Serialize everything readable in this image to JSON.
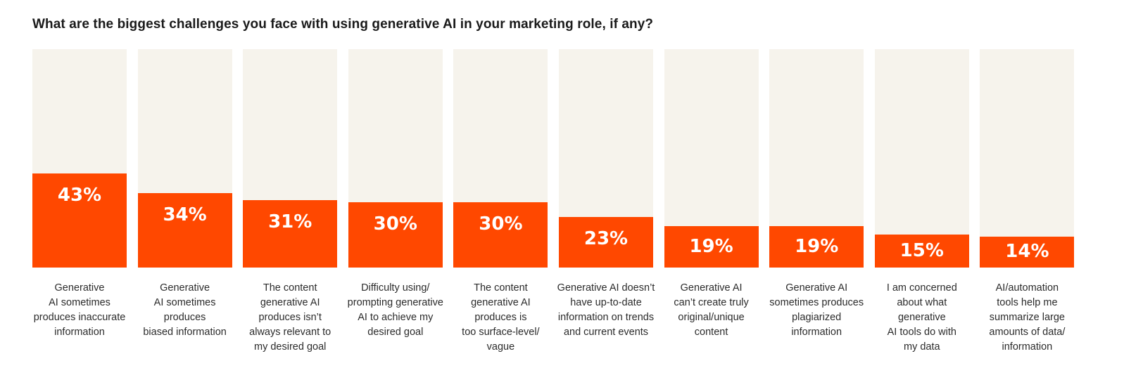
{
  "title": "What are the biggest challenges you face with using generative AI in your marketing role, if any?",
  "colors": {
    "fill": "#FF4800",
    "track": "#F6F3EC",
    "value_text": "#FFFFFF"
  },
  "chart_data": {
    "type": "bar",
    "title": "What are the biggest challenges you face with using generative AI in your marketing role, if any?",
    "xlabel": "",
    "ylabel": "",
    "ylim": [
      0,
      100
    ],
    "grid": false,
    "categories": [
      "Generative AI sometimes produces inaccurate information",
      "Generative AI sometimes produces biased information",
      "The content generative AI produces isn't always relevant to my desired goal",
      "Difficulty using/prompting generative AI to achieve my desired goal",
      "The content generative AI produces is too surface-level/vague",
      "Generative AI doesn't have up-to-date information on trends and current events",
      "Generative AI can't create truly original/unique content",
      "Generative AI sometimes produces plagiarized information",
      "I am concerned about what generative AI tools do with my data",
      "AI/automation tools help me summarize large amounts of data/information"
    ],
    "values": [
      43,
      34,
      31,
      30,
      30,
      23,
      19,
      19,
      15,
      14
    ],
    "value_labels": [
      "43%",
      "34%",
      "31%",
      "30%",
      "30%",
      "23%",
      "19%",
      "19%",
      "15%",
      "14%"
    ]
  },
  "bars": [
    {
      "value": 43,
      "label_text": "43%",
      "category": [
        "Generative",
        "AI sometimes",
        "produces inaccurate",
        "information"
      ]
    },
    {
      "value": 34,
      "label_text": "34%",
      "category": [
        "Generative",
        "AI sometimes",
        "produces",
        "biased information"
      ]
    },
    {
      "value": 31,
      "label_text": "31%",
      "category": [
        "The content",
        "generative AI",
        "produces isn’t",
        "always relevant to",
        "my desired goal"
      ]
    },
    {
      "value": 30,
      "label_text": "30%",
      "category": [
        "Difficulty using/",
        "prompting generative",
        "AI to achieve my",
        "desired goal"
      ]
    },
    {
      "value": 30,
      "label_text": "30%",
      "category": [
        "The content",
        "generative AI",
        "produces is",
        "too surface-level/",
        "vague"
      ]
    },
    {
      "value": 23,
      "label_text": "23%",
      "category": [
        "Generative AI doesn’t",
        "have up-to-date",
        "information on trends",
        "and current events"
      ]
    },
    {
      "value": 19,
      "label_text": "19%",
      "category": [
        "Generative AI",
        "can’t create truly",
        "original/unique",
        "content"
      ]
    },
    {
      "value": 19,
      "label_text": "19%",
      "category": [
        "Generative AI",
        "sometimes produces",
        "plagiarized",
        "information"
      ]
    },
    {
      "value": 15,
      "label_text": "15%",
      "category": [
        "I am concerned",
        "about what",
        "generative",
        "AI tools do with",
        "my data"
      ]
    },
    {
      "value": 14,
      "label_text": "14%",
      "category": [
        "AI/automation",
        "tools help me",
        "summarize large",
        "amounts of data/",
        "information"
      ]
    }
  ]
}
